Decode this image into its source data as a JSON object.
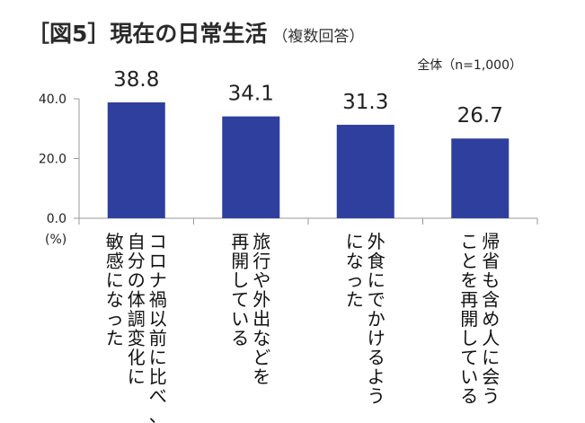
{
  "header": {
    "title": "［図5］現在の日常生活",
    "subtitle": "（複数回答）",
    "note": "全体（n=1,000）"
  },
  "chart_data": {
    "type": "bar",
    "title": "［図5］現在の日常生活",
    "subtitle": "（複数回答）",
    "ylabel": "(%)",
    "ylim": [
      0,
      40
    ],
    "yticks": [
      "0.0",
      "20.0",
      "40.0"
    ],
    "yunit": "(%)",
    "grid": false,
    "bar_color": "#2e3f9e",
    "categories": [
      "コロナ禍以前に比べ、自分の体調変化に敏感になった",
      "旅行や外出などを再開している",
      "外食にでかけるようになった",
      "帰省も含め人に会うことを再開している"
    ],
    "category_lines": [
      [
        "コロナ禍以前に比べ、",
        "自分の体調変化に",
        "敏感になった"
      ],
      [
        "旅行や外出などを",
        "再開している"
      ],
      [
        "外食にでかけるよう",
        "になった"
      ],
      [
        "帰省も含め人に会う",
        "ことを再開している"
      ]
    ],
    "values": [
      38.8,
      34.1,
      31.3,
      26.7
    ],
    "value_labels": [
      "38.8",
      "34.1",
      "31.3",
      "26.7"
    ]
  }
}
